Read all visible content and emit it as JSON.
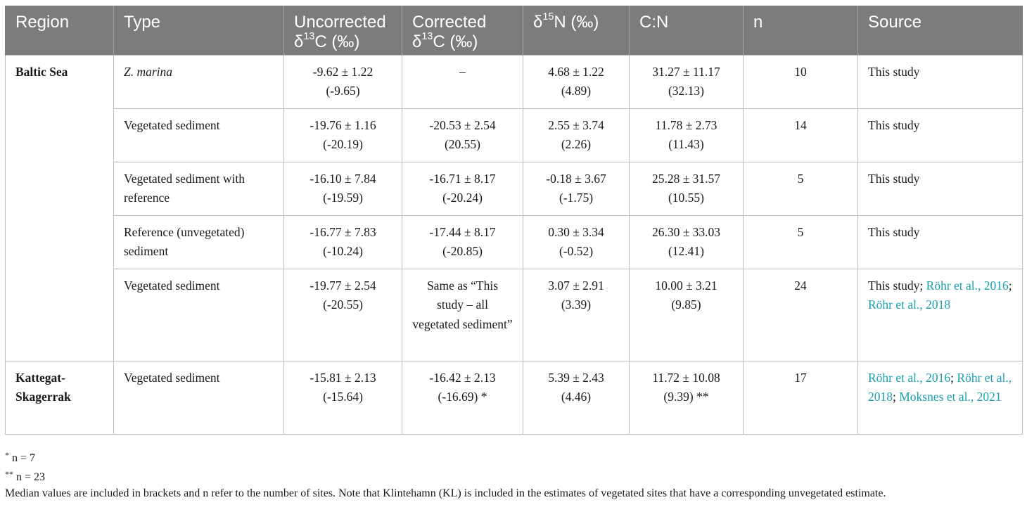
{
  "header": {
    "region": "Region",
    "type": "Type",
    "uncorrected_pre": "Uncorrected",
    "uncorrected_delta": "δ",
    "uncorrected_sup": "13",
    "uncorrected_post": "C (‰)",
    "corrected_pre": "Corrected",
    "corrected_delta": "δ",
    "corrected_sup": "13",
    "corrected_post": "C (‰)",
    "d15n_delta": "δ",
    "d15n_sup": "15",
    "d15n_post": "N (‰)",
    "cn": "C:N",
    "n": "n",
    "source": "Source"
  },
  "rows": [
    {
      "region": "Baltic Sea",
      "type": "Z. marina",
      "uncorrected": [
        "-9.62 ± 1.22",
        "(-9.65)"
      ],
      "corrected": [
        "–",
        ""
      ],
      "d15n": [
        "4.68 ± 1.22",
        "(4.89)"
      ],
      "cn": [
        "31.27 ± 11.17",
        "(32.13)"
      ],
      "n": "10",
      "source": "This study"
    },
    {
      "type": "Vegetated sediment",
      "uncorrected": [
        "-19.76 ± 1.16",
        "(-20.19)"
      ],
      "corrected": [
        "-20.53 ± 2.54",
        "(20.55)"
      ],
      "d15n": [
        "2.55 ± 3.74",
        "(2.26)"
      ],
      "cn": [
        "11.78 ± 2.73",
        "(11.43)"
      ],
      "n": "14",
      "source": "This study"
    },
    {
      "type": "Vegetated sediment with reference",
      "uncorrected": [
        "-16.10 ± 7.84",
        "(-19.59)"
      ],
      "corrected": [
        "-16.71 ± 8.17",
        "(-20.24)"
      ],
      "d15n": [
        "-0.18 ± 3.67",
        "(-1.75)"
      ],
      "cn": [
        "25.28 ± 31.57",
        "(10.55)"
      ],
      "n": "5",
      "source": "This study"
    },
    {
      "type": "Reference (unvegetated) sediment",
      "uncorrected": [
        "-16.77 ± 7.83",
        "(-10.24)"
      ],
      "corrected": [
        "-17.44 ± 8.17",
        "(-20.85)"
      ],
      "d15n": [
        "0.30 ± 3.34",
        "(-0.52)"
      ],
      "cn": [
        "26.30 ± 33.03",
        "(12.41)"
      ],
      "n": "5",
      "source": "This study"
    },
    {
      "type": "Vegetated sediment",
      "uncorrected": [
        "-19.77 ± 2.54",
        "(-20.55)"
      ],
      "corrected_text": "Same as “This study – all vegetated sediment”",
      "d15n": [
        "3.07 ± 2.91",
        "(3.39)"
      ],
      "cn": [
        "10.00 ± 3.21",
        "(9.85)"
      ],
      "n": "24",
      "source_plain": "This study;",
      "source_links": [
        "Röhr et al., 2016",
        "Röhr et al., 2018"
      ],
      "source_sep": ";"
    },
    {
      "region": "Kattegat-Skagerrak",
      "type": "Vegetated sediment",
      "uncorrected": [
        "-15.81 ± 2.13",
        "(-15.64)"
      ],
      "corrected": [
        "-16.42 ± 2.13",
        "(-16.69) *"
      ],
      "d15n": [
        "5.39 ± 2.43",
        "(4.46)"
      ],
      "cn": [
        "11.72 ± 10.08",
        "(9.39) **"
      ],
      "n": "17",
      "source_links": [
        "Röhr et al., 2016",
        "Röhr et al., 2018",
        "Moksnes et al., 2021"
      ],
      "source_sep": ";"
    }
  ],
  "footnotes": {
    "note1_star": "*",
    "note1_text": "n = 7",
    "note2_star": "**",
    "note2_text": "n = 23",
    "caption": "Median values are included in brackets and n refer to the number of sites. Note that Klintehamn (KL) is included in the estimates of vegetated sites that have a corresponding unvegetated estimate."
  }
}
